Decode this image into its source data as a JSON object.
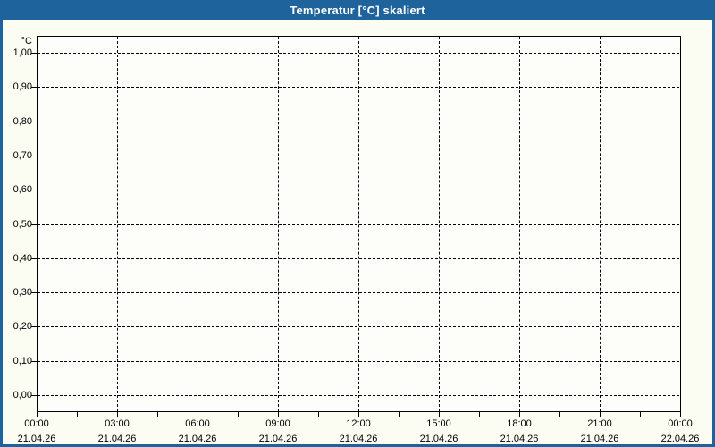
{
  "window": {
    "title": "Temperatur [°C] skaliert"
  },
  "colors": {
    "titlebar_bg": "#1E639B",
    "titlebar_text": "#FFFFFF",
    "window_border": "#1E639B",
    "content_bg": "#FBFCF2",
    "plot_bg": "#FDFEFA",
    "frame_color": "#000000",
    "grid_color": "#000000",
    "tick_color": "#000000",
    "label_color": "#000000"
  },
  "chart_data": {
    "type": "line",
    "title": "Temperatur [°C] skaliert",
    "ylabel": "°C",
    "series": [],
    "grid": true,
    "grid_style": "dashed",
    "ylim": [
      0.0,
      1.0
    ],
    "y_ticks": [
      {
        "label": "1,00",
        "value": 1.0
      },
      {
        "label": "0,90",
        "value": 0.9
      },
      {
        "label": "0,80",
        "value": 0.8
      },
      {
        "label": "0,70",
        "value": 0.7
      },
      {
        "label": "0,60",
        "value": 0.6
      },
      {
        "label": "0,50",
        "value": 0.5
      },
      {
        "label": "0,40",
        "value": 0.4
      },
      {
        "label": "0,30",
        "value": 0.3
      },
      {
        "label": "0,20",
        "value": 0.2
      },
      {
        "label": "0,10",
        "value": 0.1
      },
      {
        "label": "0,00",
        "value": 0.0
      }
    ],
    "x_ticks": [
      {
        "time": "00:00",
        "date": "21.04.26"
      },
      {
        "time": "03:00",
        "date": "21.04.26"
      },
      {
        "time": "06:00",
        "date": "21.04.26"
      },
      {
        "time": "09:00",
        "date": "21.04.26"
      },
      {
        "time": "12:00",
        "date": "21.04.26"
      },
      {
        "time": "15:00",
        "date": "21.04.26"
      },
      {
        "time": "18:00",
        "date": "21.04.26"
      },
      {
        "time": "21:00",
        "date": "21.04.26"
      },
      {
        "time": "00:00",
        "date": "22.04.26"
      }
    ],
    "x_minor_ticks_between_major": 1,
    "x_major_interval_hours": 3
  }
}
